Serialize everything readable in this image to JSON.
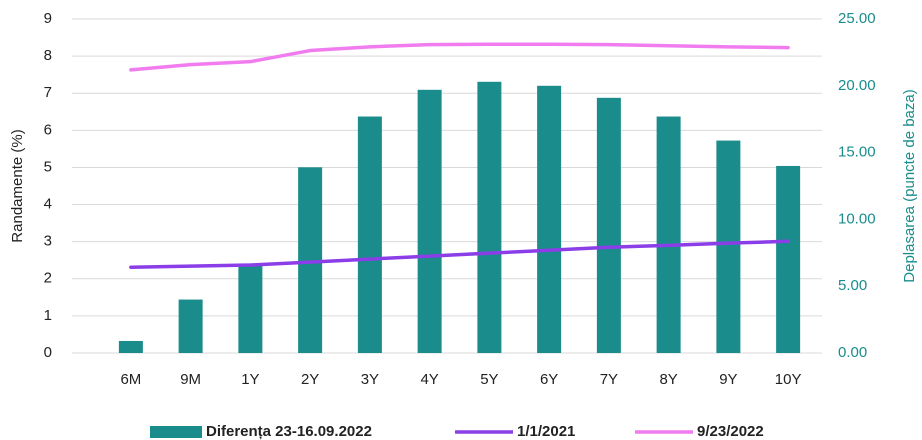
{
  "chart_data": {
    "type": "bar-line",
    "y_label": "Randamente (%)",
    "y2_label": "Deplasarea (puncte de baza)",
    "categories": [
      "6M",
      "9M",
      "1Y",
      "2Y",
      "3Y",
      "4Y",
      "5Y",
      "6Y",
      "7Y",
      "8Y",
      "9Y",
      "10Y"
    ],
    "ylim": [
      0,
      9
    ],
    "yticks": [
      0,
      1,
      2,
      3,
      4,
      5,
      6,
      7,
      8,
      9
    ],
    "y2lim": [
      0,
      25
    ],
    "y2ticks": [
      {
        "value": 0,
        "label": "0.00"
      },
      {
        "value": 5,
        "label": "5.00"
      },
      {
        "value": 10,
        "label": "10.00"
      },
      {
        "value": 15,
        "label": "15.00"
      },
      {
        "value": 20,
        "label": "20.00"
      },
      {
        "value": 25,
        "label": "25.00"
      }
    ],
    "grid": true,
    "series": [
      {
        "name": "Diferența 23-16.09.2022",
        "kind": "bar",
        "axis": "y2",
        "color": "#1a8c8c",
        "values": [
          0.9,
          4.0,
          6.6,
          13.9,
          17.7,
          19.7,
          20.3,
          20.0,
          19.1,
          17.7,
          15.9,
          14.0
        ]
      },
      {
        "name": "1/1/2021",
        "kind": "line",
        "color": "#8b3ee8",
        "values": [
          2.31,
          2.34,
          2.37,
          2.45,
          2.53,
          2.61,
          2.69,
          2.77,
          2.85,
          2.9,
          2.96,
          3.01
        ]
      },
      {
        "name": "9/23/2022",
        "kind": "line",
        "color": "#f07cf0",
        "values": [
          7.63,
          7.77,
          7.85,
          8.15,
          8.25,
          8.31,
          8.32,
          8.32,
          8.31,
          8.28,
          8.25,
          8.23
        ]
      }
    ]
  }
}
